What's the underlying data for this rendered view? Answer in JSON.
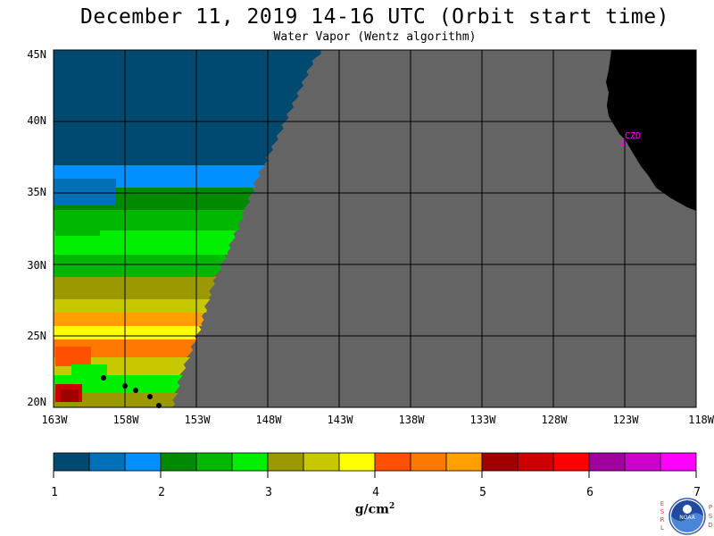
{
  "header": {
    "title": "December 11, 2019  14-16 UTC  (Orbit start time)",
    "subtitle": "Water Vapor (Wentz algorithm)"
  },
  "map": {
    "lat_labels": [
      "45N",
      "40N",
      "35N",
      "30N",
      "25N",
      "20N"
    ],
    "lon_labels": [
      "163W",
      "158W",
      "153W",
      "148W",
      "143W",
      "138W",
      "133W",
      "128W",
      "123W",
      "118W"
    ],
    "lat_range": [
      20,
      45
    ],
    "lon_range": [
      -163,
      -118
    ],
    "station_label": "CZD",
    "colors": {
      "no_data": "#646464",
      "land": "#000000",
      "grid": "#000000",
      "station": "#ff00ff"
    }
  },
  "colorbar": {
    "tick_labels": [
      "1",
      "2",
      "3",
      "4",
      "5",
      "6",
      "7"
    ],
    "units": "g/cm",
    "units_exp": "2",
    "colors": [
      "#004a70",
      "#0070b8",
      "#0090ff",
      "#008a00",
      "#00b800",
      "#00ee00",
      "#9a9a00",
      "#c8c800",
      "#ffff00",
      "#ff5000",
      "#ff7800",
      "#ffa000",
      "#a00000",
      "#cc0000",
      "#ff0000",
      "#a000a0",
      "#cc00cc",
      "#ff00ff"
    ]
  },
  "logo": {
    "left_letters": [
      "E",
      "S",
      "R",
      "L"
    ],
    "right_letters": [
      "P",
      "S",
      "D"
    ],
    "center_text": "NOAA"
  }
}
